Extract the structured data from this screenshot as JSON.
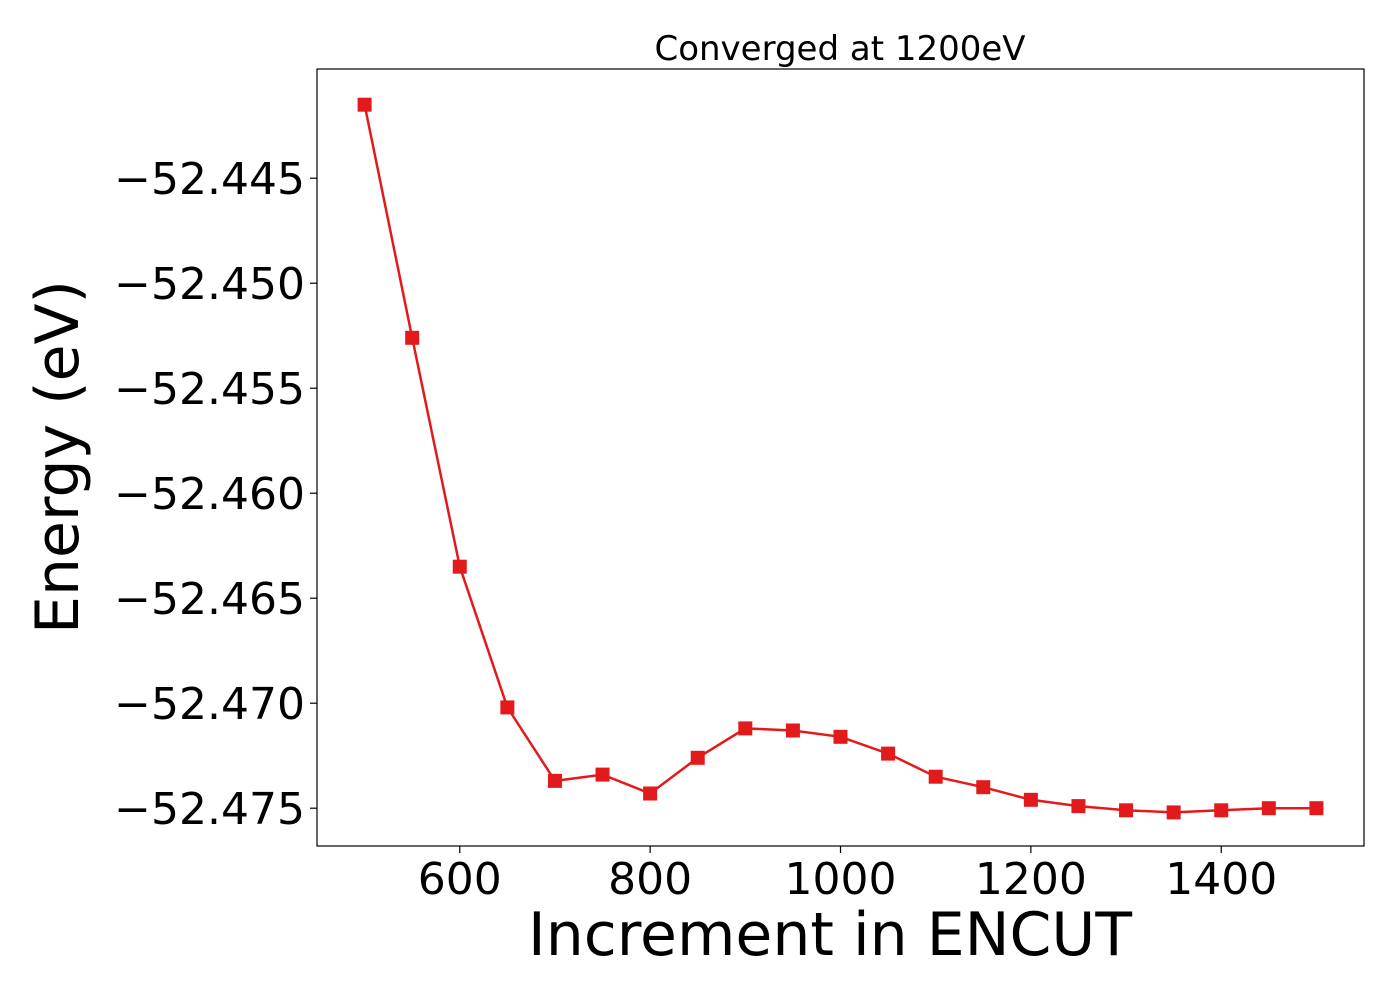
{
  "chart_data": {
    "type": "line",
    "title": "Converged at 1200eV",
    "xlabel": "Increment in ENCUT",
    "ylabel": "Energy (eV)",
    "xlim": [
      450,
      1550
    ],
    "ylim": [
      -52.4768,
      -52.4398
    ],
    "xticks": [
      600,
      800,
      1000,
      1200,
      1400
    ],
    "xtick_labels": [
      "600",
      "800",
      "1000",
      "1200",
      "1400"
    ],
    "yticks": [
      -52.445,
      -52.45,
      -52.455,
      -52.46,
      -52.465,
      -52.47,
      -52.475
    ],
    "ytick_labels": [
      "−52.445",
      "−52.450",
      "−52.455",
      "−52.460",
      "−52.465",
      "−52.470",
      "−52.475"
    ],
    "grid": false,
    "legend": "none",
    "marker": "square",
    "color": "#e31a1c",
    "series": [
      {
        "x": [
          500,
          550,
          600,
          650,
          700,
          750,
          800,
          850,
          900,
          950,
          1000,
          1050,
          1100,
          1150,
          1200,
          1250,
          1300,
          1350,
          1400,
          1450,
          1500
        ],
        "y": [
          -52.4415,
          -52.4526,
          -52.4635,
          -52.4702,
          -52.4737,
          -52.4734,
          -52.4743,
          -52.4726,
          -52.4712,
          -52.4713,
          -52.4716,
          -52.4724,
          -52.4735,
          -52.474,
          -52.4746,
          -52.4749,
          -52.4751,
          -52.4752,
          -52.4751,
          -52.475,
          -52.475
        ]
      }
    ]
  }
}
